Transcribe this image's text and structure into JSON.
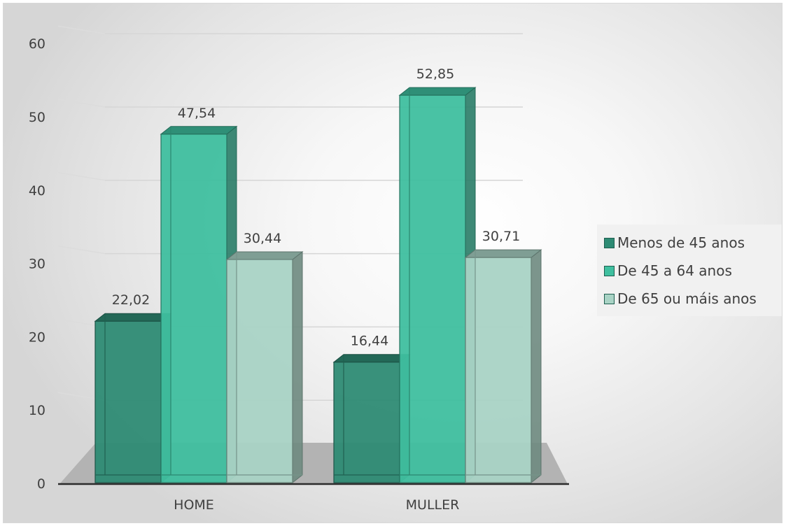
{
  "chart_data": {
    "type": "bar",
    "categories": [
      "HOME",
      "MULLER"
    ],
    "series": [
      {
        "name": "Menos de 45 anos",
        "values": [
          22.02,
          16.44
        ],
        "color": "#2e8b74"
      },
      {
        "name": "De 45 a 64 anos",
        "values": [
          47.54,
          52.85
        ],
        "color": "#3fbf9f"
      },
      {
        "name": "De 65 ou máis anos",
        "values": [
          30.44,
          30.71
        ],
        "color": "#a9d3c5"
      }
    ],
    "data_labels": [
      [
        "22,02",
        "16,44"
      ],
      [
        "47,54",
        "52,85"
      ],
      [
        "30,44",
        "30,71"
      ]
    ],
    "ylim": [
      0,
      60
    ],
    "yticks": [
      "0",
      "10",
      "20",
      "30",
      "40",
      "50",
      "60"
    ],
    "grid": true,
    "style": "3d-clustered-column",
    "legend_position": "right"
  },
  "legend": {
    "items": [
      {
        "label": "Menos de 45 anos",
        "color": "#2e8b74"
      },
      {
        "label": "De 45 a 64 anos",
        "color": "#3fbf9f"
      },
      {
        "label": "De 65 ou máis anos",
        "color": "#a9d3c5"
      }
    ]
  }
}
